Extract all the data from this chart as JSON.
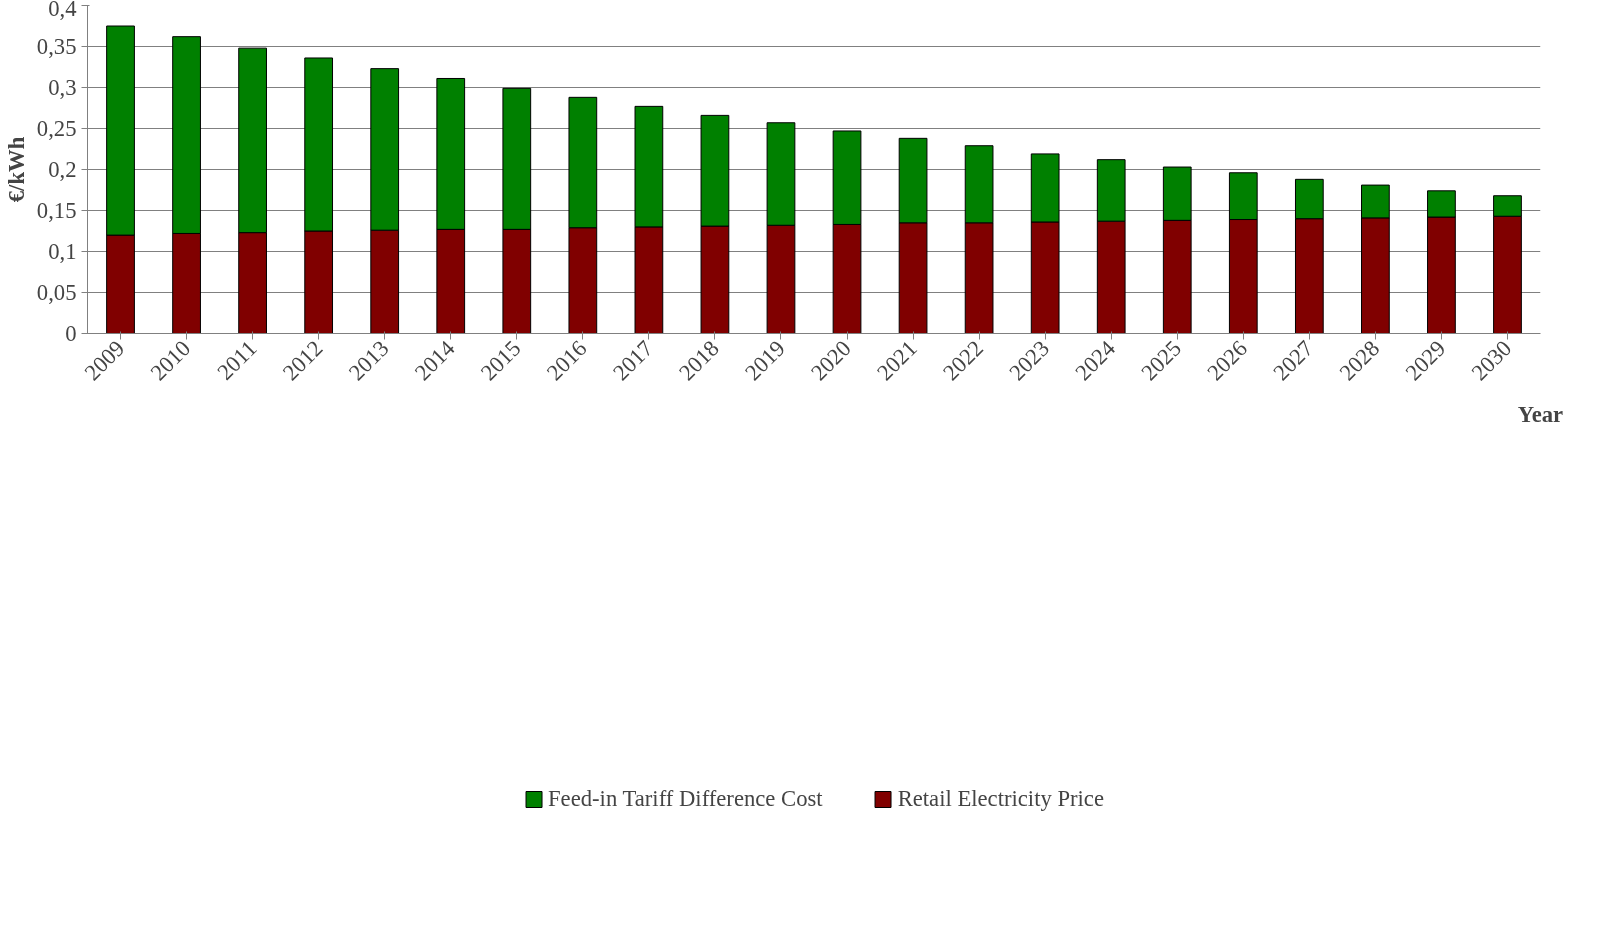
{
  "chart_data": {
    "type": "bar",
    "stacked": true,
    "xlabel": "Year",
    "ylabel": "€/kWh",
    "categories": [
      "2009",
      "2010",
      "2011",
      "2012",
      "2013",
      "2014",
      "2015",
      "2016",
      "2017",
      "2018",
      "2019",
      "2020",
      "2021",
      "2022",
      "2023",
      "2024",
      "2025",
      "2026",
      "2027",
      "2028",
      "2029",
      "2030"
    ],
    "series": [
      {
        "name": "Retail Electricity Price",
        "color": "#800000",
        "values": [
          0.12,
          0.122,
          0.123,
          0.125,
          0.126,
          0.127,
          0.127,
          0.129,
          0.13,
          0.131,
          0.132,
          0.133,
          0.135,
          0.135,
          0.136,
          0.137,
          0.138,
          0.139,
          0.14,
          0.141,
          0.142,
          0.143
        ]
      },
      {
        "name": "Feed-in Tariff Difference Cost",
        "color": "#008000",
        "values": [
          0.255,
          0.24,
          0.225,
          0.211,
          0.197,
          0.184,
          0.172,
          0.159,
          0.147,
          0.135,
          0.125,
          0.114,
          0.103,
          0.094,
          0.083,
          0.075,
          0.065,
          0.057,
          0.048,
          0.04,
          0.032,
          0.025
        ]
      }
    ],
    "ylim": [
      0,
      0.4
    ],
    "yticks": [
      0,
      {
        "value": 0.05,
        "label": "0,05"
      },
      {
        "value": 0.1,
        "label": "0,1"
      },
      {
        "value": 0.15,
        "label": "0,15"
      },
      {
        "value": 0.2,
        "label": "0,2"
      },
      {
        "value": 0.25,
        "label": "0,25"
      },
      {
        "value": 0.3,
        "label": "0,3"
      },
      {
        "value": 0.35,
        "label": "0,35"
      },
      {
        "value": 0.4,
        "label": "0,4"
      }
    ],
    "grid": "y",
    "legend": "bottom"
  }
}
